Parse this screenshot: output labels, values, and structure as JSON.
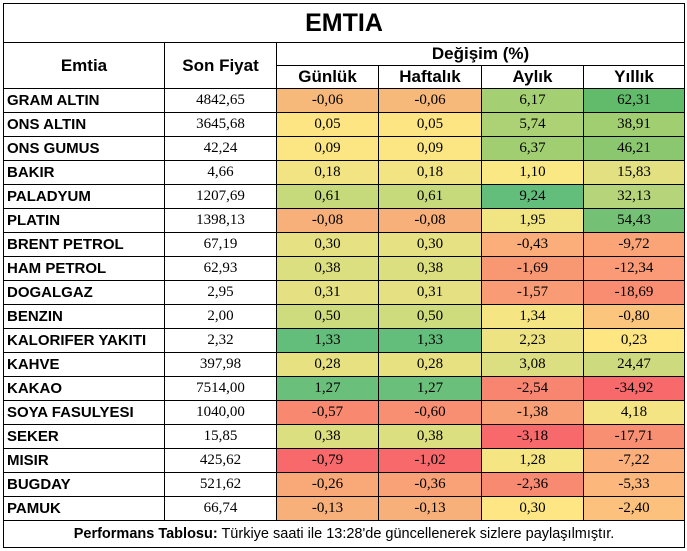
{
  "title": "EMTIA",
  "headers": {
    "commodity": "Emtia",
    "last_price": "Son Fiyat",
    "change": "Değişim (%)",
    "daily": "Günlük",
    "weekly": "Haftalık",
    "monthly": "Aylık",
    "yearly": "Yıllık"
  },
  "rows": [
    {
      "name": "GRAM ALTIN",
      "price": "4842,65",
      "daily": "-0,06",
      "weekly": "-0,06",
      "monthly": "6,17",
      "yearly": "62,31",
      "colors": [
        "#f7b97a",
        "#f7b97a",
        "#a4cf72",
        "#62bb6b"
      ]
    },
    {
      "name": "ONS ALTIN",
      "price": "3645,68",
      "daily": "0,05",
      "weekly": "0,05",
      "monthly": "5,74",
      "yearly": "38,91",
      "colors": [
        "#fde583",
        "#fde583",
        "#add275",
        "#a2ce72"
      ]
    },
    {
      "name": "ONS GUMUS",
      "price": "42,24",
      "daily": "0,09",
      "weekly": "0,09",
      "monthly": "6,37",
      "yearly": "46,21",
      "colors": [
        "#fce683",
        "#fce683",
        "#a0ce71",
        "#8ac76e"
      ]
    },
    {
      "name": "BAKIR",
      "price": "4,66",
      "daily": "0,18",
      "weekly": "0,18",
      "monthly": "1,10",
      "yearly": "15,83",
      "colors": [
        "#f3e483",
        "#f3e483",
        "#f9e883",
        "#e2e081"
      ]
    },
    {
      "name": "PALADYUM",
      "price": "1207,69",
      "daily": "0,61",
      "weekly": "0,61",
      "monthly": "9,24",
      "yearly": "32,13",
      "colors": [
        "#c6da7c",
        "#c6da7c",
        "#63be7b",
        "#b6d57a"
      ]
    },
    {
      "name": "PLATIN",
      "price": "1398,13",
      "daily": "-0,08",
      "weekly": "-0,08",
      "monthly": "1,95",
      "yearly": "54,43",
      "colors": [
        "#f8b07a",
        "#f8b07a",
        "#f1e483",
        "#74c176"
      ]
    },
    {
      "name": "BRENT PETROL",
      "price": "67,19",
      "daily": "0,30",
      "weekly": "0,30",
      "monthly": "-0,43",
      "yearly": "-9,72",
      "colors": [
        "#e6e182",
        "#e6e182",
        "#fbae7a",
        "#faa478"
      ]
    },
    {
      "name": "HAM PETROL",
      "price": "62,93",
      "daily": "0,38",
      "weekly": "0,38",
      "monthly": "-1,69",
      "yearly": "-12,34",
      "colors": [
        "#dcdf80",
        "#dcdf80",
        "#f89873",
        "#fa9a76"
      ]
    },
    {
      "name": "DOGALGAZ",
      "price": "2,95",
      "daily": "0,31",
      "weekly": "0,31",
      "monthly": "-1,57",
      "yearly": "-18,69",
      "colors": [
        "#e5e182",
        "#e5e182",
        "#f99c75",
        "#f98d72"
      ]
    },
    {
      "name": "BENZIN",
      "price": "2,00",
      "daily": "0,50",
      "weekly": "0,50",
      "monthly": "1,34",
      "yearly": "-0,80",
      "colors": [
        "#cfdc7e",
        "#cfdc7e",
        "#f5e583",
        "#fcc57e"
      ]
    },
    {
      "name": "KALORIFER YAKITI",
      "price": "2,32",
      "daily": "1,33",
      "weekly": "1,33",
      "monthly": "2,23",
      "yearly": "0,23",
      "colors": [
        "#63be7b",
        "#63be7b",
        "#ede383",
        "#fee683"
      ]
    },
    {
      "name": "KAHVE",
      "price": "397,98",
      "daily": "0,28",
      "weekly": "0,28",
      "monthly": "3,08",
      "yearly": "24,47",
      "colors": [
        "#e8e182",
        "#e8e182",
        "#dcdf81",
        "#cdda7d"
      ]
    },
    {
      "name": "KAKAO",
      "price": "7514,00",
      "daily": "1,27",
      "weekly": "1,27",
      "monthly": "-2,54",
      "yearly": "-34,92",
      "colors": [
        "#6ac07a",
        "#6ac07a",
        "#f88570",
        "#f8696b"
      ]
    },
    {
      "name": "SOYA FASULYESI",
      "price": "1040,00",
      "daily": "-0,57",
      "weekly": "-0,60",
      "monthly": "-1,38",
      "yearly": "4,18",
      "colors": [
        "#f88870",
        "#f98f72",
        "#f99f75",
        "#f4e483"
      ]
    },
    {
      "name": "SEKER",
      "price": "15,85",
      "daily": "0,38",
      "weekly": "0,38",
      "monthly": "-3,18",
      "yearly": "-17,71",
      "colors": [
        "#dcdf80",
        "#dcdf80",
        "#f8696b",
        "#f98f72"
      ]
    },
    {
      "name": "MISIR",
      "price": "425,62",
      "daily": "-0,79",
      "weekly": "-1,02",
      "monthly": "1,28",
      "yearly": "-7,22",
      "colors": [
        "#f8696b",
        "#f8696b",
        "#f6e583",
        "#fbaf7a"
      ]
    },
    {
      "name": "BUGDAY",
      "price": "521,62",
      "daily": "-0,26",
      "weekly": "-0,36",
      "monthly": "-2,36",
      "yearly": "-5,33",
      "colors": [
        "#f9a878",
        "#f9a277",
        "#f88a71",
        "#fbb77c"
      ]
    },
    {
      "name": "PAMUK",
      "price": "66,74",
      "daily": "-0,13",
      "weekly": "-0,13",
      "monthly": "0,30",
      "yearly": "-2,40",
      "colors": [
        "#f8b07a",
        "#f8b07a",
        "#fde683",
        "#fcc17d"
      ]
    }
  ],
  "footer": {
    "label": "Performans Tablosu:",
    "text": " Türkiye saati ile 13:28'de güncellenerek sizlere paylaşılmıştır."
  }
}
